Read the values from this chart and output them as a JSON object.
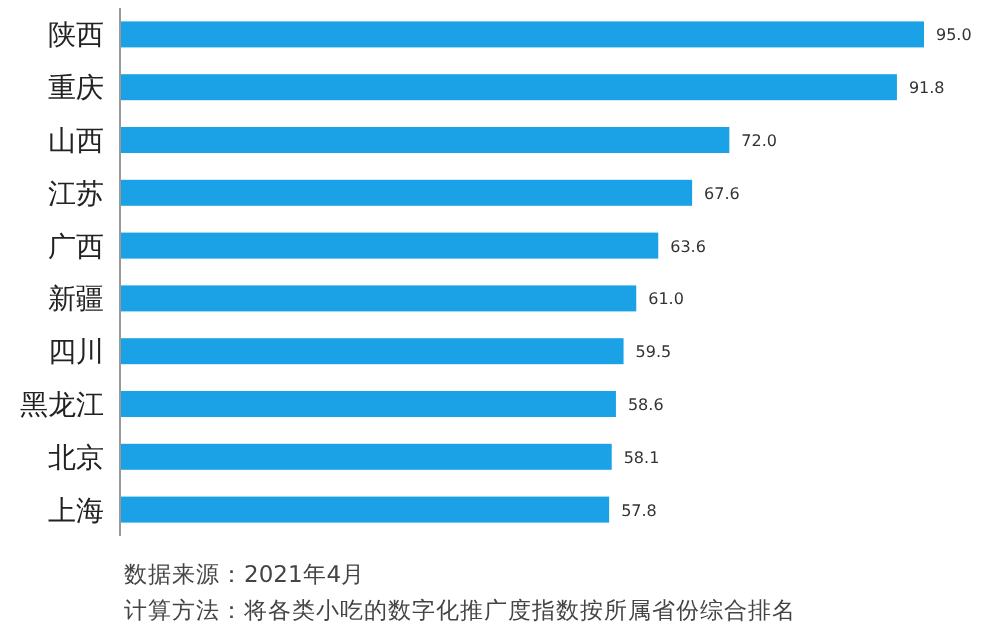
{
  "chart_data": {
    "type": "bar",
    "orientation": "horizontal",
    "categories": [
      "陕西",
      "重庆",
      "山西",
      "江苏",
      "广西",
      "新疆",
      "四川",
      "黑龙江",
      "北京",
      "上海"
    ],
    "values": [
      95.0,
      91.8,
      72.0,
      67.6,
      63.6,
      61.0,
      59.5,
      58.6,
      58.1,
      57.8
    ],
    "value_labels": [
      "95.0",
      "91.8",
      "72.0",
      "67.6",
      "63.6",
      "61.0",
      "59.5",
      "58.6",
      "58.1",
      "57.8"
    ],
    "color": "#1ba1e6",
    "annotations": [
      "数据来源：2021年4月",
      "计算方法：将各类小吃的数字化推广度指数按所属省份综合排名"
    ]
  }
}
